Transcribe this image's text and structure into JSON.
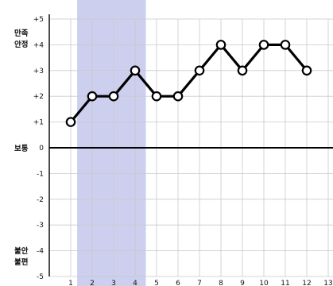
{
  "chart_data": {
    "type": "line",
    "title": "",
    "xlabel": "",
    "ylabel": "",
    "x": [
      1,
      2,
      3,
      4,
      5,
      6,
      7,
      8,
      9,
      10,
      11,
      12
    ],
    "x_tick_labels": [
      "1",
      "2",
      "3",
      "4",
      "5",
      "6",
      "7",
      "8",
      "9",
      "10",
      "11",
      "12",
      "13"
    ],
    "y_tick_labels": [
      "+5",
      "+4",
      "+3",
      "+2",
      "+1",
      "0",
      "-1",
      "-2",
      "-3",
      "-4",
      "-5"
    ],
    "xlim": [
      0,
      13
    ],
    "ylim": [
      -5,
      5
    ],
    "series": [
      {
        "values": [
          1,
          2,
          2,
          3,
          2,
          2,
          3,
          4,
          3,
          4,
          4,
          3
        ]
      }
    ],
    "side_labels": {
      "top_line1": "만족",
      "top_line2": "안정",
      "middle": "보통",
      "bottom_line1": "불안",
      "bottom_line2": "불편"
    },
    "grid": true,
    "colors": {
      "line": "#000000",
      "marker_fill": "#ffffff",
      "highlight_band": "#c4c7ec",
      "grid": "#c9c9c9"
    }
  }
}
